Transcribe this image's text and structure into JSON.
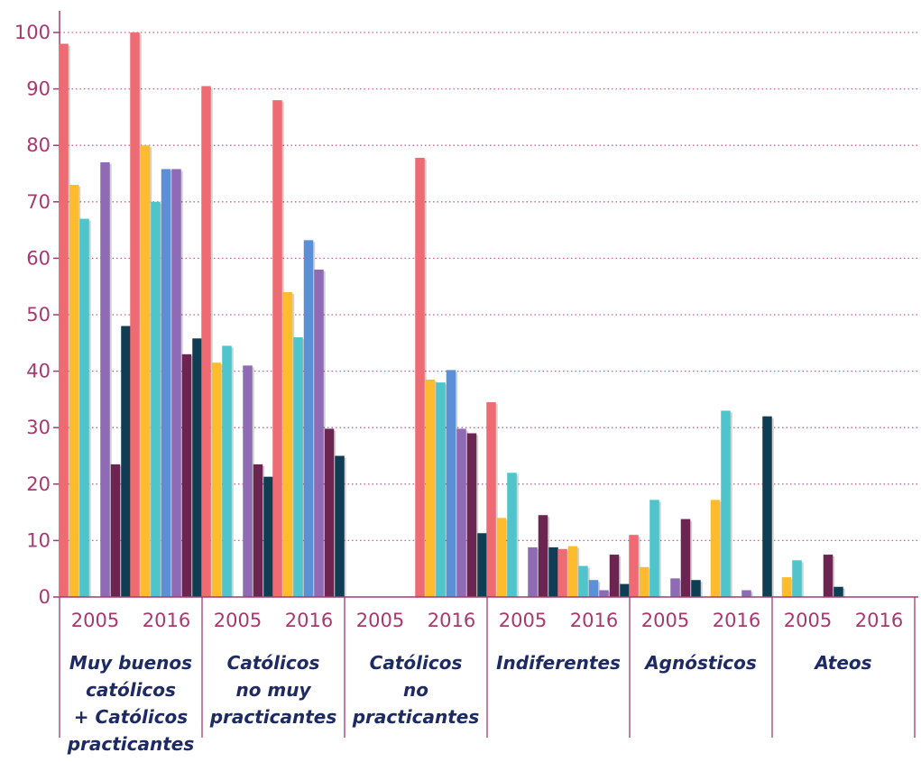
{
  "chart_data": {
    "type": "bar",
    "title": "",
    "xlabel": "",
    "ylabel": "",
    "ylim": [
      0,
      100
    ],
    "yticks": [
      0,
      10,
      20,
      30,
      40,
      50,
      60,
      70,
      80,
      90,
      100
    ],
    "grid": "horizontal dotted",
    "series_colors": [
      "#ef6b73",
      "#fdbb2d",
      "#4fc4cb",
      "#5b8fd6",
      "#8f6bb5",
      "#6b2550",
      "#0f3d54"
    ],
    "axis_color": "#a8386e",
    "group_label_color": "#1d2a63",
    "groups": [
      {
        "label_lines": [
          "Muy buenos",
          "católicos",
          "+ Católicos",
          "practicantes"
        ],
        "years": [
          {
            "year": "2005",
            "values": [
              98,
              73,
              67,
              null,
              77,
              23.5,
              48
            ]
          },
          {
            "year": "2016",
            "values": [
              100,
              80,
              70,
              75.8,
              75.8,
              43,
              45.8
            ]
          }
        ]
      },
      {
        "label_lines": [
          "Católicos",
          "no muy",
          "practicantes"
        ],
        "years": [
          {
            "year": "2005",
            "values": [
              90.5,
              41.5,
              44.5,
              null,
              41,
              23.5,
              21.3
            ]
          },
          {
            "year": "2016",
            "values": [
              88,
              54,
              46,
              63.2,
              58,
              29.8,
              25
            ]
          }
        ]
      },
      {
        "label_lines": [
          "Católicos",
          "no",
          "practicantes"
        ],
        "years": [
          {
            "year": "2005",
            "values": [
              null,
              null,
              null,
              null,
              null,
              null,
              null
            ]
          },
          {
            "year": "2016",
            "values": [
              77.8,
              38.5,
              38,
              40.2,
              29.8,
              29,
              11.3
            ]
          }
        ]
      },
      {
        "label_lines": [
          "Indiferentes"
        ],
        "years": [
          {
            "year": "2005",
            "values": [
              34.5,
              14,
              22,
              null,
              8.8,
              14.5,
              8.8
            ]
          },
          {
            "year": "2016",
            "values": [
              8.5,
              9,
              5.5,
              3,
              1.2,
              7.5,
              2.3
            ]
          }
        ]
      },
      {
        "label_lines": [
          "Agnósticos"
        ],
        "years": [
          {
            "year": "2005",
            "values": [
              11,
              5.3,
              17.2,
              null,
              3.3,
              13.8,
              3
            ]
          },
          {
            "year": "2016",
            "values": [
              null,
              17.2,
              33,
              null,
              1.2,
              null,
              32
            ]
          }
        ]
      },
      {
        "label_lines": [
          "Ateos"
        ],
        "years": [
          {
            "year": "2005",
            "values": [
              null,
              3.5,
              6.5,
              null,
              null,
              7.5,
              1.8
            ]
          },
          {
            "year": "2016",
            "values": [
              null,
              null,
              null,
              null,
              null,
              null,
              null
            ]
          }
        ]
      }
    ]
  }
}
